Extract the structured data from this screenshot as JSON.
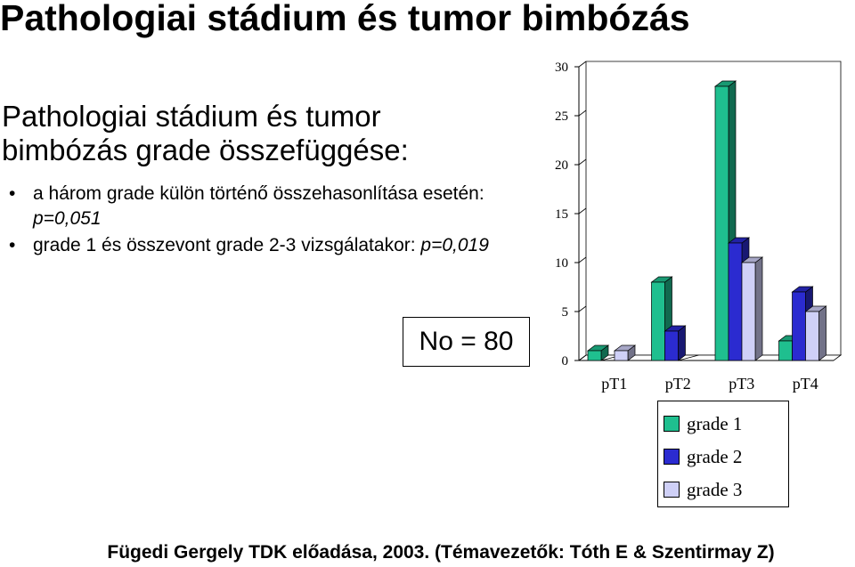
{
  "slide": {
    "title": "Pathologiai stádium és tumor bimbózás",
    "subtitle_line1": "Pathologiai stádium és tumor",
    "subtitle_line2": "bimbózás grade összefüggése:",
    "bullet1_text": "a három grade külön történő összehasonlítása esetén: ",
    "bullet1_p": "p=0,051",
    "bullet2_text": "grade 1 és összevont grade 2-3 vizsgálatakor: ",
    "bullet2_p": "p=0,019",
    "n_label": "No = 80",
    "footer": "Fügedi Gergely TDK előadása, 2003. (Témavezetők: Tóth E & Szentirmay Z)"
  },
  "chart_data": {
    "type": "bar",
    "categories": [
      "pT1",
      "pT2",
      "pT3",
      "pT4"
    ],
    "series": [
      {
        "name": "grade 1",
        "values": [
          1,
          8,
          28,
          2
        ],
        "color": "#1fbf8f"
      },
      {
        "name": "grade 2",
        "values": [
          0,
          3,
          12,
          7
        ],
        "color": "#2b2bd0"
      },
      {
        "name": "grade 3",
        "values": [
          1,
          0,
          10,
          5
        ],
        "color": "#cfd0f7"
      }
    ],
    "yticks": [
      "0",
      "5",
      "10",
      "15",
      "20",
      "25",
      "30"
    ],
    "ylim": [
      0,
      30
    ],
    "legend": "bottom-right",
    "three_d": true
  }
}
